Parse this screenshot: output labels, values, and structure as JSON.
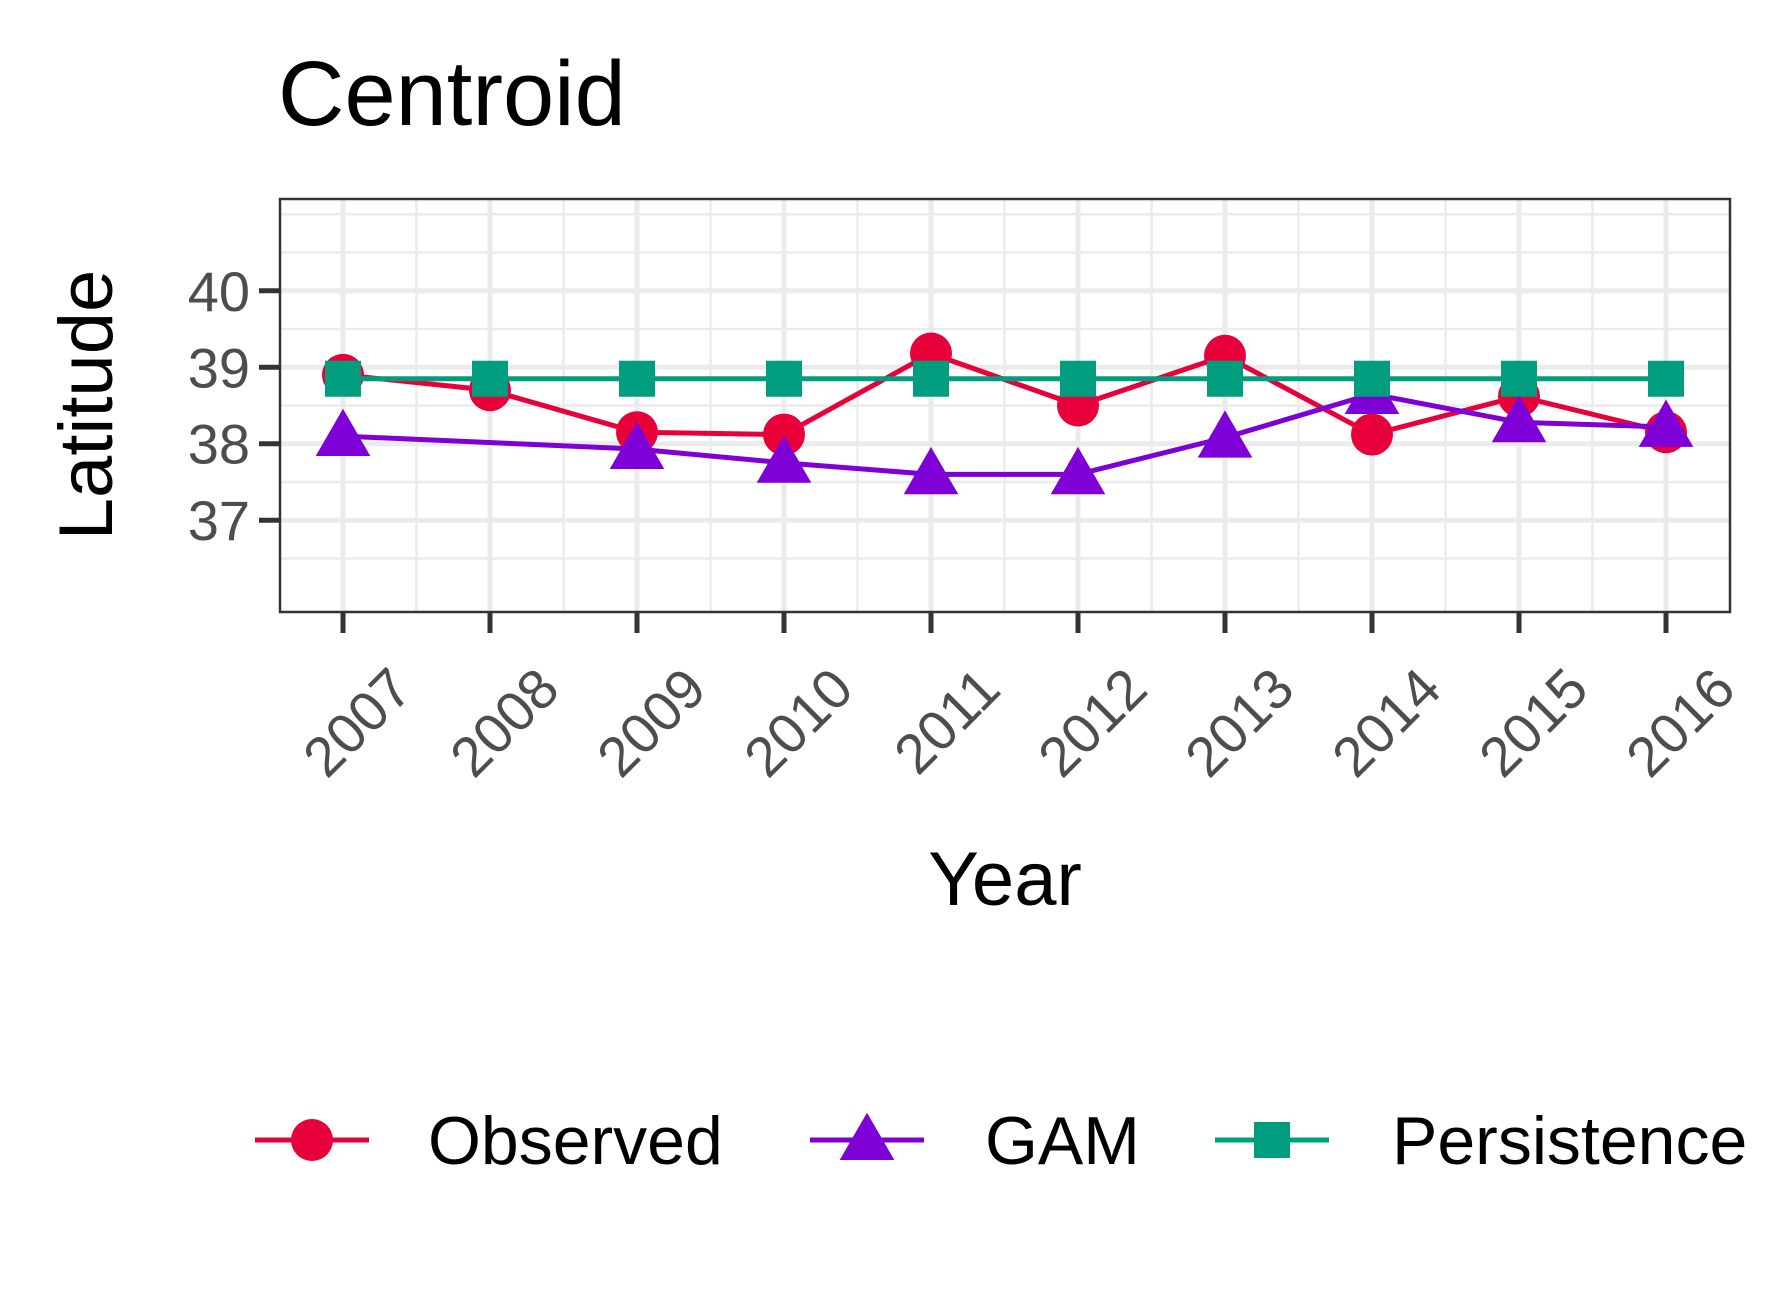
{
  "chart_data": {
    "type": "line",
    "title": "Centroid",
    "xlabel": "Year",
    "ylabel": "Latitude",
    "x": [
      "2007",
      "2008",
      "2009",
      "2010",
      "2011",
      "2012",
      "2013",
      "2014",
      "2015",
      "2016"
    ],
    "ylim": [
      35.8,
      41.2
    ],
    "yticks": [
      37,
      38,
      39,
      40
    ],
    "ytick_labels": [
      "37",
      "38",
      "39",
      "40"
    ],
    "grid": true,
    "legend_position": "bottom",
    "series": [
      {
        "name": "Observed",
        "color": "#e8003a",
        "marker": "circle",
        "values": [
          38.9,
          38.7,
          38.15,
          38.12,
          39.18,
          38.5,
          39.15,
          38.12,
          38.62,
          38.15
        ]
      },
      {
        "name": "GAM",
        "color": "#7e00d6",
        "marker": "triangle",
        "values": [
          38.1,
          null,
          37.93,
          37.75,
          37.6,
          37.6,
          38.08,
          38.65,
          38.28,
          38.22
        ]
      },
      {
        "name": "Persistence",
        "color": "#009e7e",
        "marker": "square",
        "values": [
          38.85,
          38.85,
          38.85,
          38.85,
          38.85,
          38.85,
          38.85,
          38.85,
          38.85,
          38.85
        ]
      }
    ]
  }
}
